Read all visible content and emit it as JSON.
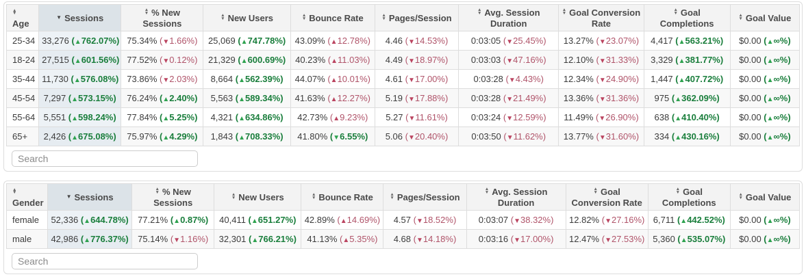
{
  "colors": {
    "positive": "#1a7e3c",
    "negative": "#b0546a",
    "positive_arrow": "#2ea24f",
    "negative_arrow": "#bb4460",
    "sorted_header_bg": "#dce3e8",
    "sorted_cell_bg": "#edf2f6",
    "header_bg": "#f3f3f3",
    "stripe_bg": "#f8f8f8",
    "border": "#dddddd"
  },
  "tables": [
    {
      "name": "age-table",
      "search_placeholder": "Search",
      "headers": [
        {
          "label": "Age",
          "sort": "both"
        },
        {
          "label": "Sessions",
          "sort": "desc"
        },
        {
          "label": "% New Sessions",
          "sort": "both"
        },
        {
          "label": "New Users",
          "sort": "both"
        },
        {
          "label": "Bounce Rate",
          "sort": "both"
        },
        {
          "label": "Pages/Session",
          "sort": "both"
        },
        {
          "label": "Avg. Session Duration",
          "sort": "both"
        },
        {
          "label": "Goal Conversion Rate",
          "sort": "both"
        },
        {
          "label": "Goal Completions",
          "sort": "both"
        },
        {
          "label": "Goal Value",
          "sort": "both"
        }
      ],
      "rows": [
        {
          "key": "25-34",
          "cells": [
            {
              "v": "33,276",
              "d": "762.07%",
              "dir": "up",
              "good": true
            },
            {
              "v": "75.34%",
              "d": "1.66%",
              "dir": "down",
              "good": false
            },
            {
              "v": "25,069",
              "d": "747.78%",
              "dir": "up",
              "good": true
            },
            {
              "v": "43.09%",
              "d": "12.78%",
              "dir": "up",
              "good": false
            },
            {
              "v": "4.46",
              "d": "14.53%",
              "dir": "down",
              "good": false
            },
            {
              "v": "0:03:05",
              "d": "25.45%",
              "dir": "down",
              "good": false
            },
            {
              "v": "13.27%",
              "d": "23.07%",
              "dir": "down",
              "good": false
            },
            {
              "v": "4,417",
              "d": "563.21%",
              "dir": "up",
              "good": true
            },
            {
              "v": "$0.00",
              "d": "∞%",
              "dir": "up",
              "good": true
            }
          ]
        },
        {
          "key": "18-24",
          "cells": [
            {
              "v": "27,515",
              "d": "601.56%",
              "dir": "up",
              "good": true
            },
            {
              "v": "77.52%",
              "d": "0.12%",
              "dir": "down",
              "good": false
            },
            {
              "v": "21,329",
              "d": "600.69%",
              "dir": "up",
              "good": true
            },
            {
              "v": "40.23%",
              "d": "11.03%",
              "dir": "up",
              "good": false
            },
            {
              "v": "4.49",
              "d": "18.97%",
              "dir": "down",
              "good": false
            },
            {
              "v": "0:03:03",
              "d": "47.16%",
              "dir": "down",
              "good": false
            },
            {
              "v": "12.10%",
              "d": "31.33%",
              "dir": "down",
              "good": false
            },
            {
              "v": "3,329",
              "d": "381.77%",
              "dir": "up",
              "good": true
            },
            {
              "v": "$0.00",
              "d": "∞%",
              "dir": "up",
              "good": true
            }
          ]
        },
        {
          "key": "35-44",
          "cells": [
            {
              "v": "11,730",
              "d": "576.08%",
              "dir": "up",
              "good": true
            },
            {
              "v": "73.86%",
              "d": "2.03%",
              "dir": "down",
              "good": false
            },
            {
              "v": "8,664",
              "d": "562.39%",
              "dir": "up",
              "good": true
            },
            {
              "v": "44.07%",
              "d": "10.01%",
              "dir": "up",
              "good": false
            },
            {
              "v": "4.61",
              "d": "17.00%",
              "dir": "down",
              "good": false
            },
            {
              "v": "0:03:28",
              "d": "4.43%",
              "dir": "down",
              "good": false
            },
            {
              "v": "12.34%",
              "d": "24.90%",
              "dir": "down",
              "good": false
            },
            {
              "v": "1,447",
              "d": "407.72%",
              "dir": "up",
              "good": true
            },
            {
              "v": "$0.00",
              "d": "∞%",
              "dir": "up",
              "good": true
            }
          ]
        },
        {
          "key": "45-54",
          "cells": [
            {
              "v": "7,297",
              "d": "573.15%",
              "dir": "up",
              "good": true
            },
            {
              "v": "76.24%",
              "d": "2.40%",
              "dir": "up",
              "good": true
            },
            {
              "v": "5,563",
              "d": "589.34%",
              "dir": "up",
              "good": true
            },
            {
              "v": "41.63%",
              "d": "12.27%",
              "dir": "up",
              "good": false
            },
            {
              "v": "5.19",
              "d": "17.88%",
              "dir": "down",
              "good": false
            },
            {
              "v": "0:03:28",
              "d": "21.49%",
              "dir": "down",
              "good": false
            },
            {
              "v": "13.36%",
              "d": "31.36%",
              "dir": "down",
              "good": false
            },
            {
              "v": "975",
              "d": "362.09%",
              "dir": "up",
              "good": true
            },
            {
              "v": "$0.00",
              "d": "∞%",
              "dir": "up",
              "good": true
            }
          ]
        },
        {
          "key": "55-64",
          "cells": [
            {
              "v": "5,551",
              "d": "598.24%",
              "dir": "up",
              "good": true
            },
            {
              "v": "77.84%",
              "d": "5.25%",
              "dir": "up",
              "good": true
            },
            {
              "v": "4,321",
              "d": "634.86%",
              "dir": "up",
              "good": true
            },
            {
              "v": "42.73%",
              "d": "9.23%",
              "dir": "up",
              "good": false
            },
            {
              "v": "5.27",
              "d": "11.61%",
              "dir": "down",
              "good": false
            },
            {
              "v": "0:03:24",
              "d": "12.59%",
              "dir": "down",
              "good": false
            },
            {
              "v": "11.49%",
              "d": "26.90%",
              "dir": "down",
              "good": false
            },
            {
              "v": "638",
              "d": "410.40%",
              "dir": "up",
              "good": true
            },
            {
              "v": "$0.00",
              "d": "∞%",
              "dir": "up",
              "good": true
            }
          ]
        },
        {
          "key": "65+",
          "cells": [
            {
              "v": "2,426",
              "d": "675.08%",
              "dir": "up",
              "good": true
            },
            {
              "v": "75.97%",
              "d": "4.29%",
              "dir": "up",
              "good": true
            },
            {
              "v": "1,843",
              "d": "708.33%",
              "dir": "up",
              "good": true
            },
            {
              "v": "41.80%",
              "d": "6.55%",
              "dir": "down",
              "good": true
            },
            {
              "v": "5.06",
              "d": "20.40%",
              "dir": "down",
              "good": false
            },
            {
              "v": "0:03:50",
              "d": "11.62%",
              "dir": "down",
              "good": false
            },
            {
              "v": "13.77%",
              "d": "31.60%",
              "dir": "down",
              "good": false
            },
            {
              "v": "334",
              "d": "430.16%",
              "dir": "up",
              "good": true
            },
            {
              "v": "$0.00",
              "d": "∞%",
              "dir": "up",
              "good": true
            }
          ]
        }
      ]
    },
    {
      "name": "gender-table",
      "search_placeholder": "Search",
      "headers": [
        {
          "label": "Gender",
          "sort": "both"
        },
        {
          "label": "Sessions",
          "sort": "desc"
        },
        {
          "label": "% New Sessions",
          "sort": "both"
        },
        {
          "label": "New Users",
          "sort": "both"
        },
        {
          "label": "Bounce Rate",
          "sort": "both"
        },
        {
          "label": "Pages/Session",
          "sort": "both"
        },
        {
          "label": "Avg. Session Duration",
          "sort": "both"
        },
        {
          "label": "Goal Conversion Rate",
          "sort": "both"
        },
        {
          "label": "Goal Completions",
          "sort": "both"
        },
        {
          "label": "Goal Value",
          "sort": "both"
        }
      ],
      "rows": [
        {
          "key": "female",
          "cells": [
            {
              "v": "52,336",
              "d": "644.78%",
              "dir": "up",
              "good": true
            },
            {
              "v": "77.21%",
              "d": "0.87%",
              "dir": "up",
              "good": true
            },
            {
              "v": "40,411",
              "d": "651.27%",
              "dir": "up",
              "good": true
            },
            {
              "v": "42.89%",
              "d": "14.69%",
              "dir": "up",
              "good": false
            },
            {
              "v": "4.57",
              "d": "18.52%",
              "dir": "down",
              "good": false
            },
            {
              "v": "0:03:07",
              "d": "38.32%",
              "dir": "down",
              "good": false
            },
            {
              "v": "12.82%",
              "d": "27.16%",
              "dir": "down",
              "good": false
            },
            {
              "v": "6,711",
              "d": "442.52%",
              "dir": "up",
              "good": true
            },
            {
              "v": "$0.00",
              "d": "∞%",
              "dir": "up",
              "good": true
            }
          ]
        },
        {
          "key": "male",
          "cells": [
            {
              "v": "42,986",
              "d": "776.37%",
              "dir": "up",
              "good": true
            },
            {
              "v": "75.14%",
              "d": "1.16%",
              "dir": "down",
              "good": false
            },
            {
              "v": "32,301",
              "d": "766.21%",
              "dir": "up",
              "good": true
            },
            {
              "v": "41.13%",
              "d": "5.35%",
              "dir": "up",
              "good": false
            },
            {
              "v": "4.68",
              "d": "14.18%",
              "dir": "down",
              "good": false
            },
            {
              "v": "0:03:16",
              "d": "17.00%",
              "dir": "down",
              "good": false
            },
            {
              "v": "12.47%",
              "d": "27.53%",
              "dir": "down",
              "good": false
            },
            {
              "v": "5,360",
              "d": "535.07%",
              "dir": "up",
              "good": true
            },
            {
              "v": "$0.00",
              "d": "∞%",
              "dir": "up",
              "good": true
            }
          ]
        }
      ]
    }
  ]
}
